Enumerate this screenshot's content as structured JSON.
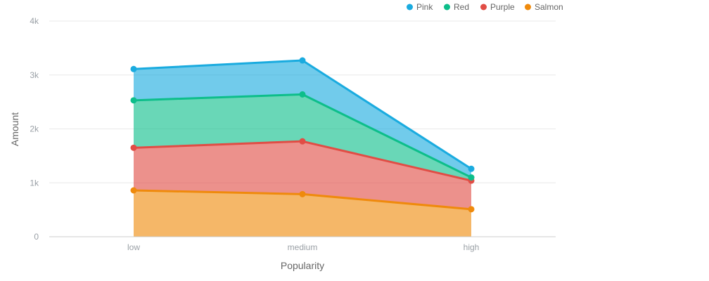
{
  "chart_data": {
    "type": "area",
    "stacked": true,
    "categories": [
      "low",
      "medium",
      "high"
    ],
    "xlabel": "Popularity",
    "ylabel": "Amount",
    "ylim": [
      0,
      4000
    ],
    "yticks": [
      0,
      1000,
      2000,
      3000,
      4000
    ],
    "ytick_labels": [
      "0",
      "1k",
      "2k",
      "3k",
      "4k"
    ],
    "grid": true,
    "legend": "top-right",
    "series": [
      {
        "name": "Salmon",
        "color": "#ef8a0c",
        "values": [
          860,
          790,
          510
        ]
      },
      {
        "name": "Purple",
        "color": "#e14d45",
        "values": [
          790,
          980,
          530
        ]
      },
      {
        "name": "Red",
        "color": "#0dbe8a",
        "values": [
          880,
          870,
          60
        ]
      },
      {
        "name": "Pink",
        "color": "#1aabdf",
        "values": [
          580,
          630,
          160
        ]
      }
    ]
  }
}
